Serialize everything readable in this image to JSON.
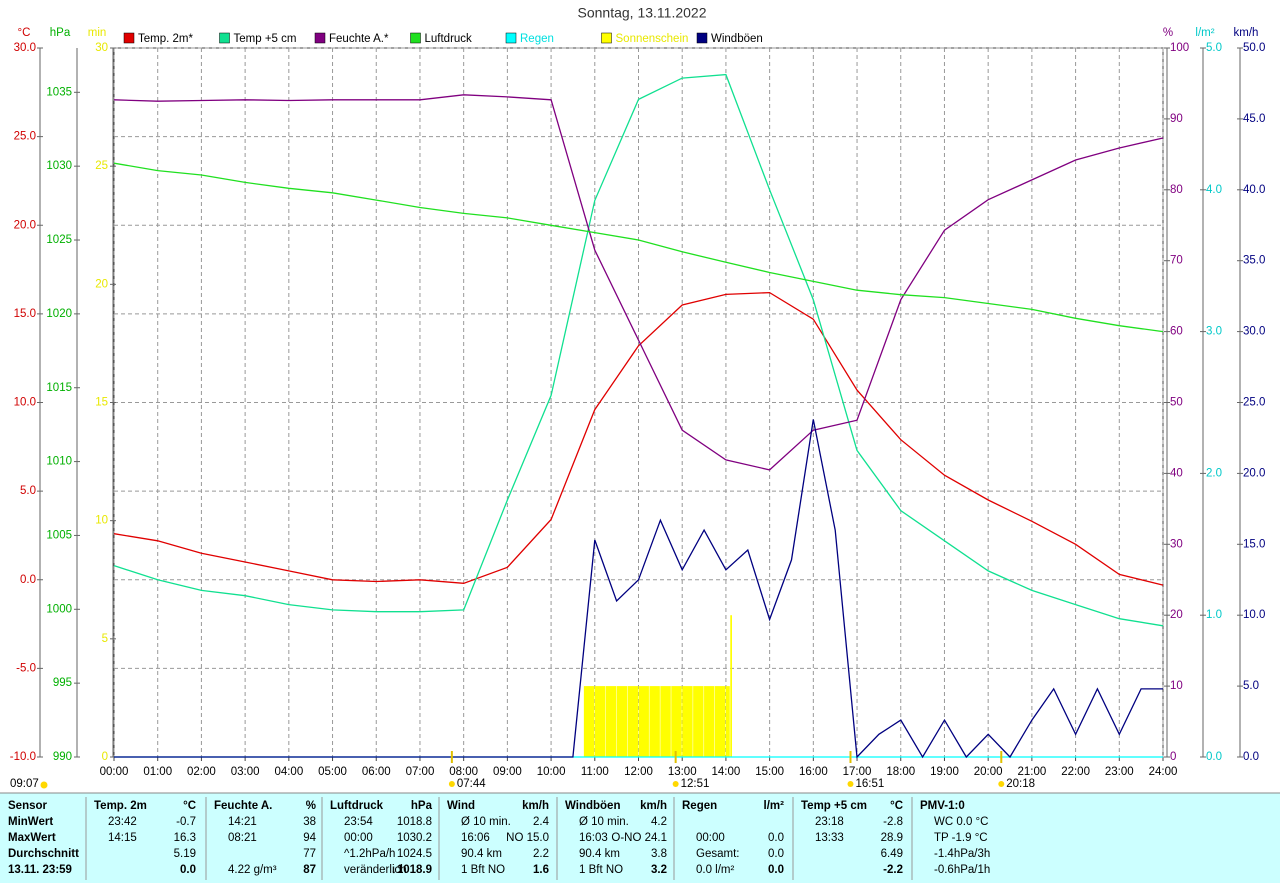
{
  "chart_data": {
    "type": "line",
    "title": "Sonntag, 13.11.2022",
    "xlim": [
      0,
      24
    ],
    "xticks": [
      {
        "value": 0,
        "label": "00:00"
      },
      {
        "value": 1,
        "label": "01:00"
      },
      {
        "value": 2,
        "label": "02:00"
      },
      {
        "value": 3,
        "label": "03:00"
      },
      {
        "value": 4,
        "label": "04:00"
      },
      {
        "value": 5,
        "label": "05:00"
      },
      {
        "value": 6,
        "label": "06:00"
      },
      {
        "value": 7,
        "label": "07:00"
      },
      {
        "value": 8,
        "label": "08:00"
      },
      {
        "value": 9,
        "label": "09:00"
      },
      {
        "value": 10,
        "label": "10:00"
      },
      {
        "value": 11,
        "label": "11:00"
      },
      {
        "value": 12,
        "label": "12:00"
      },
      {
        "value": 13,
        "label": "13:00"
      },
      {
        "value": 14,
        "label": "14:00"
      },
      {
        "value": 15,
        "label": "15:00"
      },
      {
        "value": 16,
        "label": "16:00"
      },
      {
        "value": 17,
        "label": "17:00"
      },
      {
        "value": 18,
        "label": "18:00"
      },
      {
        "value": 19,
        "label": "19:00"
      },
      {
        "value": 20,
        "label": "20:00"
      },
      {
        "value": 21,
        "label": "21:00"
      },
      {
        "value": 22,
        "label": "22:00"
      },
      {
        "value": 23,
        "label": "23:00"
      },
      {
        "value": 24,
        "label": "24:00"
      }
    ],
    "grid": true,
    "axes": {
      "y1": {
        "label": "°C",
        "color": "#d00000",
        "side": "left",
        "ylim": [
          -10,
          30
        ],
        "yticks": [
          {
            "value": -10,
            "label": "-10.0"
          },
          {
            "value": -5,
            "label": "-5.0"
          },
          {
            "value": 0,
            "label": "0.0"
          },
          {
            "value": 5,
            "label": "5.0"
          },
          {
            "value": 10,
            "label": "10.0"
          },
          {
            "value": 15,
            "label": "15.0"
          },
          {
            "value": 20,
            "label": "20.0"
          },
          {
            "value": 25,
            "label": "25.0"
          },
          {
            "value": 30,
            "label": "30.0"
          }
        ]
      },
      "y2": {
        "label": "hPa",
        "color": "#00b000",
        "side": "left",
        "ylim": [
          990,
          1038
        ],
        "yticks": [
          990,
          995,
          1000,
          1005,
          1010,
          1015,
          1020,
          1025,
          1030,
          1035
        ]
      },
      "y3": {
        "label": "min",
        "color": "#e8e800",
        "side": "left",
        "ylim": [
          0,
          30
        ],
        "yticks": [
          0,
          5,
          10,
          15,
          20,
          25,
          30
        ]
      },
      "y4": {
        "label": "%",
        "color": "#800080",
        "side": "right",
        "ylim": [
          0,
          100
        ],
        "yticks": [
          0,
          10,
          20,
          30,
          40,
          50,
          60,
          70,
          80,
          90,
          100
        ]
      },
      "y5": {
        "label": "l/m²",
        "color": "#00c8c8",
        "side": "right",
        "ylim": [
          0,
          5
        ],
        "yticks": [
          {
            "value": 0,
            "label": "0.0"
          },
          {
            "value": 1,
            "label": "1.0"
          },
          {
            "value": 2,
            "label": "2.0"
          },
          {
            "value": 3,
            "label": "3.0"
          },
          {
            "value": 4,
            "label": "4.0"
          },
          {
            "value": 5,
            "label": "5.0"
          }
        ]
      },
      "y6": {
        "label": "km/h",
        "color": "#000080",
        "side": "right",
        "ylim": [
          0,
          50
        ],
        "yticks": [
          {
            "value": 0,
            "label": "0.0"
          },
          {
            "value": 5,
            "label": "5.0"
          },
          {
            "value": 10,
            "label": "10.0"
          },
          {
            "value": 15,
            "label": "15.0"
          },
          {
            "value": 20,
            "label": "20.0"
          },
          {
            "value": 25,
            "label": "25.0"
          },
          {
            "value": 30,
            "label": "30.0"
          },
          {
            "value": 35,
            "label": "35.0"
          },
          {
            "value": 40,
            "label": "40.0"
          },
          {
            "value": 45,
            "label": "45.0"
          },
          {
            "value": 50,
            "label": "50.0"
          }
        ]
      }
    },
    "series": [
      {
        "name": "Temp. 2m*",
        "color": "#e00000",
        "legend_text_color": "#000000",
        "type": "line",
        "axis": "y1",
        "x": [
          0,
          1,
          2,
          3,
          4,
          5,
          6,
          7,
          8,
          9,
          10,
          11,
          12,
          13,
          14,
          15,
          16,
          17,
          18,
          19,
          20,
          21,
          22,
          23,
          24
        ],
        "values": [
          2.6,
          2.2,
          1.5,
          1.0,
          0.5,
          0.0,
          -0.1,
          0.0,
          -0.2,
          0.7,
          3.4,
          9.6,
          13.2,
          15.5,
          16.1,
          16.2,
          14.7,
          10.7,
          7.9,
          5.9,
          4.5,
          3.3,
          2.0,
          0.3,
          -0.3
        ]
      },
      {
        "name": "Temp +5 cm",
        "color": "#10e090",
        "legend_text_color": "#000000",
        "type": "line",
        "axis": "y1",
        "x": [
          0,
          1,
          2,
          3,
          4,
          5,
          6,
          7,
          8,
          9,
          10,
          11,
          12,
          13,
          14,
          15,
          16,
          17,
          18,
          19,
          20,
          21,
          22,
          23,
          24
        ],
        "values": [
          0.8,
          0.0,
          -0.6,
          -0.9,
          -1.4,
          -1.7,
          -1.8,
          -1.8,
          -1.7,
          4.5,
          10.4,
          21.4,
          27.1,
          28.3,
          28.5,
          22.0,
          15.8,
          7.3,
          3.9,
          2.2,
          0.5,
          -0.6,
          -1.4,
          -2.2,
          -2.6
        ]
      },
      {
        "name": "Feuchte A.*",
        "color": "#800080",
        "legend_text_color": "#000000",
        "type": "line",
        "axis": "y4",
        "x": [
          0,
          1,
          2,
          3,
          4,
          5,
          6,
          7,
          8,
          9,
          10,
          11,
          12,
          13,
          14,
          15,
          16,
          17,
          18,
          19,
          20,
          21,
          22,
          23,
          24
        ],
        "values": [
          92.7,
          92.5,
          92.6,
          92.7,
          92.6,
          92.7,
          92.7,
          92.7,
          93.4,
          93.1,
          92.7,
          71.5,
          58.8,
          46.1,
          41.9,
          40.5,
          46.1,
          47.5,
          64.5,
          74.3,
          78.6,
          81.4,
          84.2,
          85.9,
          87.3
        ]
      },
      {
        "name": "Luftdruck",
        "color": "#20e020",
        "legend_text_color": "#000000",
        "type": "line",
        "axis": "y2",
        "x": [
          0,
          1,
          2,
          3,
          4,
          5,
          6,
          7,
          8,
          9,
          10,
          11,
          12,
          13,
          14,
          15,
          16,
          17,
          18,
          19,
          20,
          21,
          22,
          23,
          24
        ],
        "values": [
          1030.2,
          1029.7,
          1029.4,
          1028.9,
          1028.5,
          1028.2,
          1027.7,
          1027.2,
          1026.8,
          1026.5,
          1026.0,
          1025.5,
          1025.0,
          1024.2,
          1023.5,
          1022.8,
          1022.2,
          1021.6,
          1021.3,
          1021.1,
          1020.7,
          1020.3,
          1019.7,
          1019.2,
          1018.8
        ]
      },
      {
        "name": "Regen",
        "color": "#00ffff",
        "legend_text_color": "#00e0e0",
        "type": "line",
        "axis": "y5",
        "x": [
          0,
          24
        ],
        "values": [
          0,
          0
        ]
      },
      {
        "name": "Sonnenschein",
        "color": "#ffff00",
        "legend_text_color": "#e8e800",
        "type": "bar",
        "axis": "y3",
        "x": [
          10.75,
          11,
          11.25,
          11.5,
          11.75,
          12,
          12.25,
          12.5,
          12.75,
          13,
          13.25,
          13.5,
          13.75,
          14,
          14.1
        ],
        "values": [
          3,
          3,
          3,
          3,
          3,
          3,
          3,
          3,
          3,
          3,
          3,
          3,
          3,
          3,
          6
        ]
      },
      {
        "name": "Windböen",
        "color": "#000080",
        "legend_text_color": "#000000",
        "type": "line",
        "axis": "y6",
        "x": [
          0,
          0.5,
          1,
          1.5,
          2,
          2.5,
          3,
          3.5,
          4,
          4.5,
          5,
          5.5,
          6,
          6.5,
          7,
          7.5,
          8,
          8.5,
          9,
          9.5,
          10,
          10.5,
          11,
          11.5,
          12,
          12.5,
          13,
          13.5,
          14,
          14.5,
          15,
          15.5,
          16,
          16.5,
          17,
          17.5,
          18,
          18.5,
          19,
          19.5,
          20,
          20.5,
          21,
          21.5,
          22,
          22.5,
          23,
          23.5,
          24
        ],
        "values": [
          0,
          0,
          0,
          0,
          0,
          0,
          0,
          0,
          0,
          0,
          0,
          0,
          0,
          0,
          0,
          0,
          0,
          0,
          0,
          0,
          0,
          0,
          15.3,
          11.0,
          12.5,
          16.7,
          13.2,
          16.0,
          13.2,
          14.6,
          9.7,
          13.9,
          23.8,
          16.0,
          0,
          1.6,
          2.6,
          0,
          2.6,
          0,
          1.6,
          0,
          2.6,
          4.8,
          1.6,
          4.8,
          1.6,
          4.8,
          4.8
        ]
      }
    ],
    "corner_note": "09:07",
    "annotations": [
      {
        "x": 7.73,
        "label": "07:44"
      },
      {
        "x": 12.85,
        "label": "12:51"
      },
      {
        "x": 16.85,
        "label": "16:51"
      },
      {
        "x": 20.3,
        "label": "20:18"
      }
    ]
  },
  "table": {
    "sensor": {
      "title": "Sensor",
      "rows": [
        "MinWert",
        "MaxWert",
        "Durchschnitt",
        "13.11. 23:59"
      ]
    },
    "columns": [
      {
        "title": "Temp. 2m",
        "unit": "°C",
        "rows": [
          {
            "left": "23:42",
            "right": "-0.7"
          },
          {
            "left": "14:15",
            "right": "16.3"
          },
          {
            "right": "5.19"
          },
          {
            "right": "0.0"
          }
        ]
      },
      {
        "title": "Feuchte A.",
        "unit": "%",
        "rows": [
          {
            "left": "14:21",
            "right": "38"
          },
          {
            "left": "08:21",
            "right": "94"
          },
          {
            "right": "77"
          },
          {
            "left": "4.22 g/m³",
            "right": "87"
          }
        ]
      },
      {
        "title": "Luftdruck",
        "unit": "hPa",
        "rows": [
          {
            "left": "23:54",
            "right": "1018.8"
          },
          {
            "left": "00:00",
            "right": "1030.2"
          },
          {
            "left": "^1.2hPa/h",
            "right": "1024.5"
          },
          {
            "left": "veränderlich",
            "right": "↓1018.9"
          }
        ]
      },
      {
        "title": "Wind",
        "unit": "km/h",
        "rows": [
          {
            "left": "Ø 10 min.",
            "right": "2.4"
          },
          {
            "left": "16:06",
            "right": "NO 15.0"
          },
          {
            "left": "90.4 km",
            "right": "2.2"
          },
          {
            "left": "1 Bft NO",
            "right": "1.6"
          }
        ]
      },
      {
        "title": "Windböen",
        "unit": "km/h",
        "rows": [
          {
            "left": "Ø 10 min.",
            "right": "4.2"
          },
          {
            "left": "16:03",
            "right": "O-NO 24.1"
          },
          {
            "left": "90.4 km",
            "right": "3.8"
          },
          {
            "left": "1 Bft NO",
            "right": "3.2"
          }
        ]
      },
      {
        "title": "Regen",
        "unit": "l/m²",
        "rows": [
          {},
          {
            "left": "00:00",
            "right": "0.0"
          },
          {
            "left": "Gesamt:",
            "right": "0.0"
          },
          {
            "left": "0.0 l/m²",
            "right": "0.0"
          }
        ]
      },
      {
        "title": "Temp +5 cm",
        "unit": "°C",
        "rows": [
          {
            "left": "23:18",
            "right": "-2.8"
          },
          {
            "left": "13:33",
            "right": "28.9"
          },
          {
            "right": "6.49"
          },
          {
            "right": "-2.2"
          }
        ]
      },
      {
        "title": "PMV-1:0",
        "rows": [
          {
            "left": "WC 0.0 °C"
          },
          {
            "left": "TP -1.9 °C"
          },
          {
            "left": "-1.4hPa/3h"
          },
          {
            "left": "-0.6hPa/1h"
          }
        ]
      }
    ]
  }
}
